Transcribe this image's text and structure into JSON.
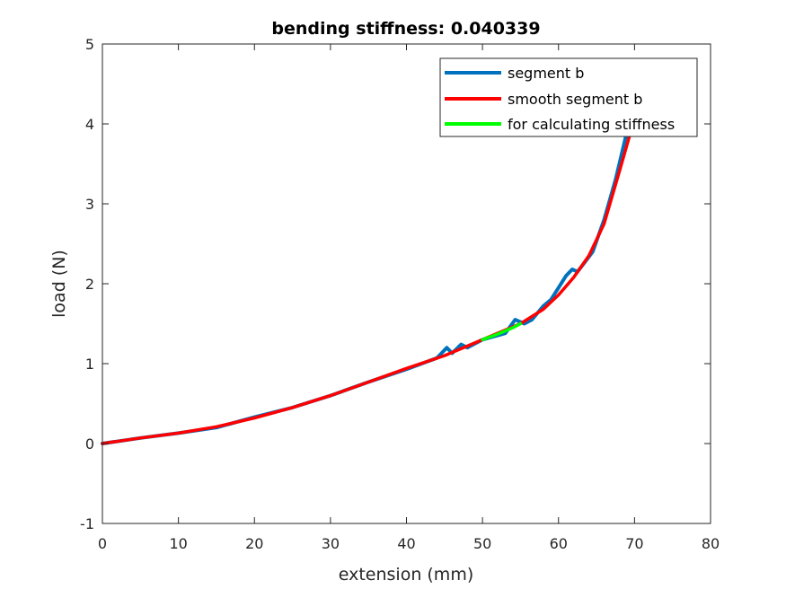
{
  "chart_data": {
    "type": "line",
    "title": "bending stiffness: 0.040339",
    "xlabel": "extension (mm)",
    "ylabel": "load (N)",
    "xlim": [
      0,
      80
    ],
    "ylim": [
      -1,
      5
    ],
    "xticks": [
      "0",
      "10",
      "20",
      "30",
      "40",
      "50",
      "60",
      "70",
      "80"
    ],
    "yticks": [
      "-1",
      "0",
      "1",
      "2",
      "3",
      "4",
      "5"
    ],
    "grid": false,
    "legend_position": "top-right",
    "series": [
      {
        "name": "segment b",
        "color": "#0072bd",
        "x": [
          0,
          5,
          10,
          15,
          20,
          25,
          30,
          35,
          40,
          44,
          45.3,
          46,
          47.2,
          48,
          50,
          53,
          54.3,
          55.5,
          56.5,
          58,
          59,
          60,
          61,
          61.8,
          62.5,
          63.3,
          64.5,
          66,
          67.5,
          69,
          70.5,
          71.5
        ],
        "y": [
          0,
          0.07,
          0.13,
          0.2,
          0.33,
          0.45,
          0.6,
          0.77,
          0.93,
          1.07,
          1.2,
          1.13,
          1.24,
          1.2,
          1.3,
          1.38,
          1.55,
          1.5,
          1.55,
          1.72,
          1.8,
          1.95,
          2.1,
          2.18,
          2.15,
          2.25,
          2.4,
          2.8,
          3.3,
          3.9,
          4.5,
          4.8
        ]
      },
      {
        "name": "smooth segment b",
        "color": "#ff0000",
        "x": [
          0,
          5,
          10,
          15,
          20,
          25,
          30,
          35,
          40,
          45,
          50,
          55,
          58,
          60,
          62,
          64,
          66,
          68,
          69.5,
          70.5,
          71
        ],
        "y": [
          0,
          0.07,
          0.13,
          0.21,
          0.32,
          0.45,
          0.6,
          0.77,
          0.94,
          1.1,
          1.3,
          1.5,
          1.68,
          1.86,
          2.08,
          2.35,
          2.75,
          3.4,
          3.9,
          4.3,
          4.55
        ]
      },
      {
        "name": "for calculating stiffness",
        "color": "#00ff00",
        "x": [
          50,
          52,
          54,
          55
        ],
        "y": [
          1.3,
          1.37,
          1.45,
          1.5
        ]
      }
    ]
  }
}
